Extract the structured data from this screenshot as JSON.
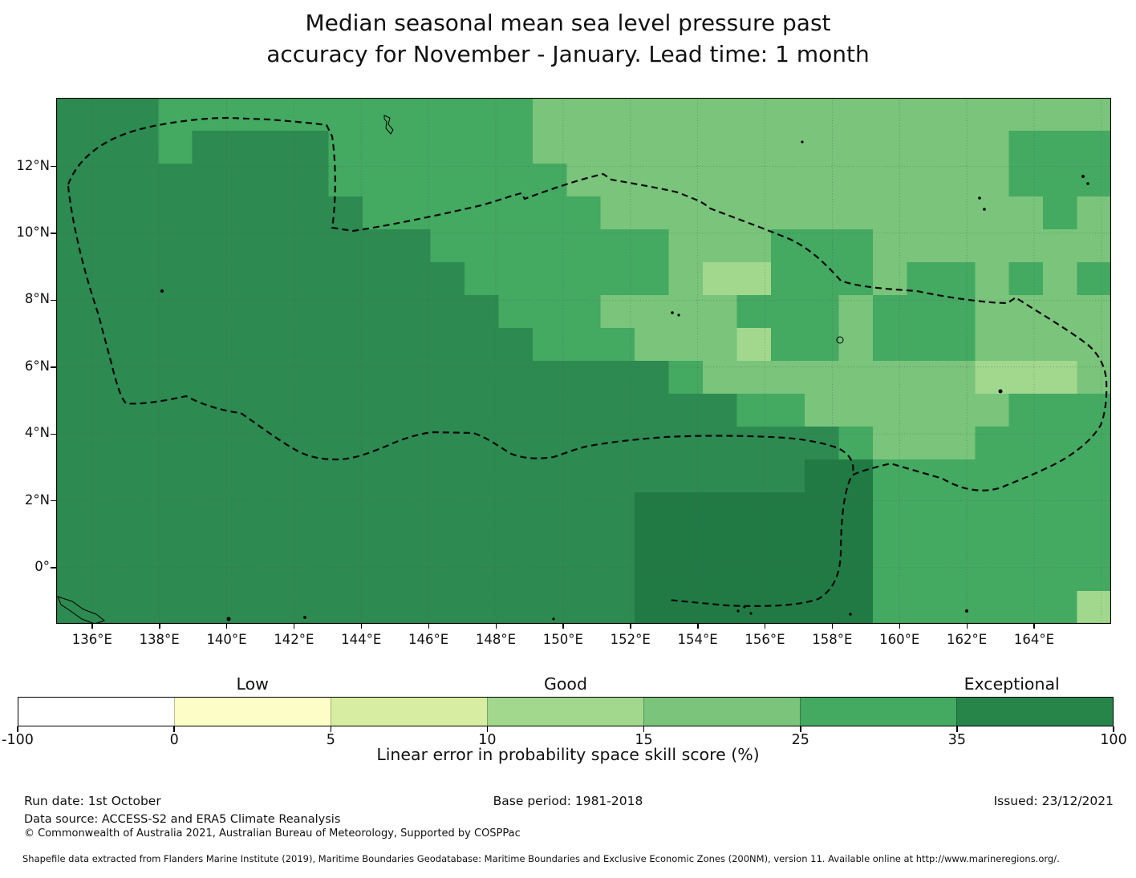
{
  "title": {
    "line1": "Median seasonal mean sea level pressure past",
    "line2": "accuracy for November - January. Lead time: 1 month"
  },
  "axes": {
    "x_tick_labels": [
      "136°E",
      "138°E",
      "140°E",
      "142°E",
      "144°E",
      "146°E",
      "148°E",
      "150°E",
      "152°E",
      "154°E",
      "156°E",
      "158°E",
      "160°E",
      "162°E",
      "164°E"
    ],
    "y_tick_labels": [
      "12°N",
      "10°N",
      "8°N",
      "6°N",
      "4°N",
      "2°N",
      "0°"
    ]
  },
  "colorbar": {
    "category_labels": [
      "Low",
      "Good",
      "Exceptional"
    ],
    "tick_labels": [
      "-100",
      "0",
      "5",
      "10",
      "15",
      "25",
      "35",
      "100"
    ],
    "segment_colors": [
      "#ffffff",
      "#fdfdc8",
      "#d7eda1",
      "#a2d88e",
      "#7ac47c",
      "#44a961",
      "#27854a"
    ],
    "xlabel": "Linear error in probability space skill score (%)"
  },
  "footer": {
    "run_date": "Run date: 1st October",
    "base_period": "Base period: 1981-2018",
    "issued": "Issued: 23/12/2021",
    "data_source": "Data source: ACCESS-S2 and ERA5 Climate Reanalysis",
    "copyright": "© Commonwealth of Australia 2021, Australian Bureau of Meteorology, Supported by COSPPac",
    "shapefile_note": "Shapefile data extracted from Flanders Marine Institute (2019), Maritime Boundaries Geodatabase: Maritime Boundaries and Exclusive Economic Zones (200NM), version 11. Available online at http://www.marineregions.org/."
  },
  "chart_data": {
    "type": "heatmap",
    "title": "Median seasonal mean sea level pressure past accuracy for November - January. Lead time: 1 month",
    "xlabel": "Linear error in probability space skill score (%)",
    "x_axis": {
      "tick_values_deg_east": [
        136,
        138,
        140,
        142,
        144,
        146,
        148,
        150,
        152,
        154,
        156,
        158,
        160,
        162,
        164
      ],
      "range_deg_east": [
        134.9,
        166.3
      ]
    },
    "y_axis": {
      "tick_values_deg_north": [
        12,
        10,
        8,
        6,
        4,
        2,
        0
      ],
      "range_deg_north": [
        -1.7,
        14.0
      ]
    },
    "grid": true,
    "colorbar_bounds": [
      -100,
      0,
      5,
      10,
      15,
      25,
      35,
      100
    ],
    "colorbar_category_positions": {
      "Low": "over 0-5 segment",
      "Good": "over 10-15 segment",
      "Exceptional": "over 35-100 segment"
    },
    "level_colors": {
      "3": "#a2d88e",
      "4": "#7ac47c",
      "5": "#44a961",
      "6": "#2d8a50",
      "7": "#217a44"
    },
    "level_skill_ranges": {
      "3": "10-15",
      "4": "15-25",
      "5": "25-35",
      "6": "35-100",
      "7": "35-100 (highest)"
    },
    "raster_cols_deg": "135E to 166E, 1 degree per cell, 31 cells per row",
    "raster_rows": [
      "6665555555555544444444444444444",
      "6665666655555544444444444444555",
      "6666666655555554444444444444555",
      "6666666665555555444444444444454",
      "6666666666655555554445554444444",
      "6666666666665555554335554554545",
      "6666666666666555444455545554444",
      "6666666666666655544435545554444",
      "6666666666666666665444444443334",
      "6666666666666666666655444444555",
      "6666666666666666666666654445555",
      "6666666666666666666666775555555",
      "6666666666666666677777775555555",
      "6666666666666666677777775555555",
      "6666666666666666677777775555555",
      "6666666666666666677777775555553"
    ]
  }
}
